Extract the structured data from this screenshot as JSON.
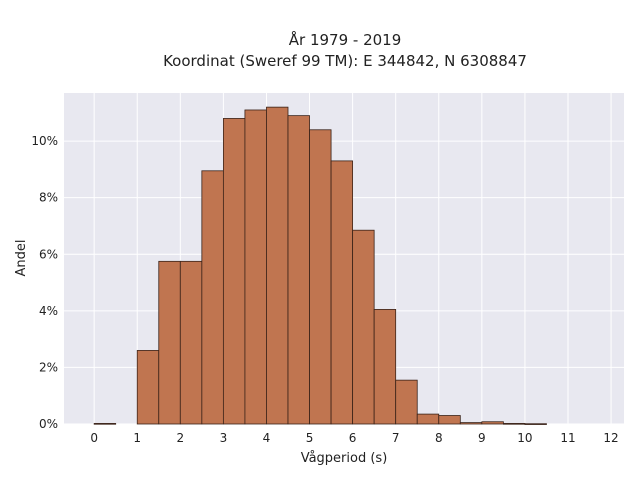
{
  "chart_data": {
    "type": "bar",
    "title_line1": "År 1979 - 2019",
    "title_line2": "Koordinat (Sweref 99 TM): E 344842, N 6308847",
    "xlabel": "Vågperiod (s)",
    "ylabel": "Andel",
    "xlim": [
      -0.7,
      12.3
    ],
    "ylim": [
      0,
      11.7
    ],
    "x_ticks": [
      0,
      1,
      2,
      3,
      4,
      5,
      6,
      7,
      8,
      9,
      10,
      11,
      12
    ],
    "y_ticks": [
      0,
      2,
      4,
      6,
      8,
      10
    ],
    "y_tick_labels": [
      "0%",
      "2%",
      "4%",
      "6%",
      "8%",
      "10%"
    ],
    "bin_width": 0.5,
    "bin_starts": [
      0,
      0.5,
      1,
      1.5,
      2,
      2.5,
      3,
      3.5,
      4,
      4.5,
      5,
      5.5,
      6,
      6.5,
      7,
      7.5,
      8,
      8.5,
      9,
      9.5,
      10,
      10.5,
      11,
      11.5
    ],
    "values": [
      0.02,
      0,
      2.6,
      5.75,
      5.75,
      8.95,
      10.8,
      11.1,
      11.2,
      10.9,
      10.4,
      9.3,
      6.85,
      4.05,
      1.55,
      0.35,
      0.3,
      0.05,
      0.08,
      0.02,
      0.01,
      0,
      0,
      0
    ],
    "bar_color": "#c07550",
    "bar_edge_color": "#3a2218",
    "grid": true,
    "background_color": "#e8e8f0"
  }
}
